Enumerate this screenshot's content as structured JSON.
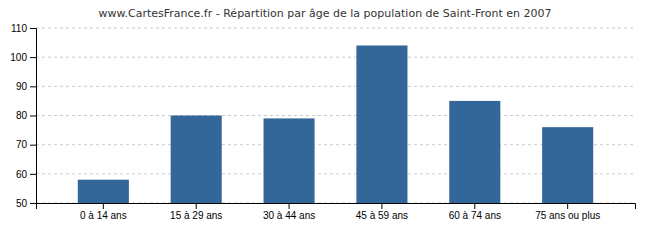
{
  "chart_data": {
    "type": "bar",
    "title": "www.CartesFrance.fr - Répartition par âge de la population de Saint-Front en 2007",
    "categories": [
      "0 à 14 ans",
      "15 à 29 ans",
      "30 à 44 ans",
      "45 à 59 ans",
      "60 à 74 ans",
      "75 ans ou plus"
    ],
    "values": [
      58,
      80,
      79,
      104,
      85,
      76
    ],
    "color": "#336699",
    "ylim": [
      50,
      110
    ],
    "yticks": [
      50,
      60,
      70,
      80,
      90,
      100,
      110
    ],
    "grid": true
  }
}
